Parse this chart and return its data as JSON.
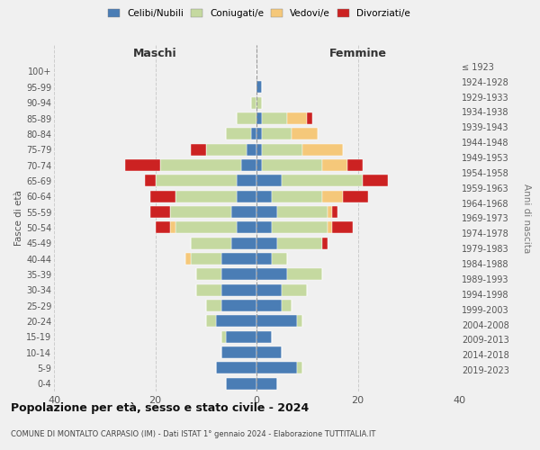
{
  "age_groups": [
    "0-4",
    "5-9",
    "10-14",
    "15-19",
    "20-24",
    "25-29",
    "30-34",
    "35-39",
    "40-44",
    "45-49",
    "50-54",
    "55-59",
    "60-64",
    "65-69",
    "70-74",
    "75-79",
    "80-84",
    "85-89",
    "90-94",
    "95-99",
    "100+"
  ],
  "birth_years": [
    "2019-2023",
    "2014-2018",
    "2009-2013",
    "2004-2008",
    "1999-2003",
    "1994-1998",
    "1989-1993",
    "1984-1988",
    "1979-1983",
    "1974-1978",
    "1969-1973",
    "1964-1968",
    "1959-1963",
    "1954-1958",
    "1949-1953",
    "1944-1948",
    "1939-1943",
    "1934-1938",
    "1929-1933",
    "1924-1928",
    "≤ 1923"
  ],
  "colors": {
    "celibi": "#4a7db5",
    "coniugati": "#c5d9a0",
    "vedovi": "#f5c87a",
    "divorziati": "#cc2222"
  },
  "maschi": {
    "celibi": [
      6,
      8,
      7,
      6,
      8,
      7,
      7,
      7,
      7,
      5,
      4,
      5,
      4,
      4,
      3,
      2,
      1,
      0,
      0,
      0,
      0
    ],
    "coniugati": [
      0,
      0,
      0,
      1,
      2,
      3,
      5,
      5,
      6,
      8,
      12,
      12,
      12,
      16,
      16,
      8,
      5,
      4,
      1,
      0,
      0
    ],
    "vedovi": [
      0,
      0,
      0,
      0,
      0,
      0,
      0,
      0,
      1,
      0,
      1,
      0,
      0,
      0,
      0,
      0,
      0,
      0,
      0,
      0,
      0
    ],
    "divorziati": [
      0,
      0,
      0,
      0,
      0,
      0,
      0,
      0,
      0,
      0,
      3,
      4,
      5,
      2,
      7,
      3,
      0,
      0,
      0,
      0,
      0
    ]
  },
  "femmine": {
    "celibi": [
      4,
      8,
      5,
      3,
      8,
      5,
      5,
      6,
      3,
      4,
      3,
      4,
      3,
      5,
      1,
      1,
      1,
      1,
      0,
      1,
      0
    ],
    "coniugati": [
      0,
      1,
      0,
      0,
      1,
      2,
      5,
      7,
      3,
      9,
      11,
      10,
      10,
      16,
      12,
      8,
      6,
      5,
      1,
      0,
      0
    ],
    "vedovi": [
      0,
      0,
      0,
      0,
      0,
      0,
      0,
      0,
      0,
      0,
      1,
      1,
      4,
      0,
      5,
      8,
      5,
      4,
      0,
      0,
      0
    ],
    "divorziati": [
      0,
      0,
      0,
      0,
      0,
      0,
      0,
      0,
      0,
      1,
      4,
      1,
      5,
      5,
      3,
      0,
      0,
      1,
      0,
      0,
      0
    ]
  },
  "xlim": 40,
  "title": "Popolazione per età, sesso e stato civile - 2024",
  "subtitle": "COMUNE DI MONTALTO CARPASIO (IM) - Dati ISTAT 1° gennaio 2024 - Elaborazione TUTTITALIA.IT",
  "ylabel_left": "Fasce di età",
  "ylabel_right": "Anni di nascita",
  "xlabel_left": "Maschi",
  "xlabel_right": "Femmine",
  "bg_color": "#f0f0f0",
  "grid_color": "#cccccc"
}
